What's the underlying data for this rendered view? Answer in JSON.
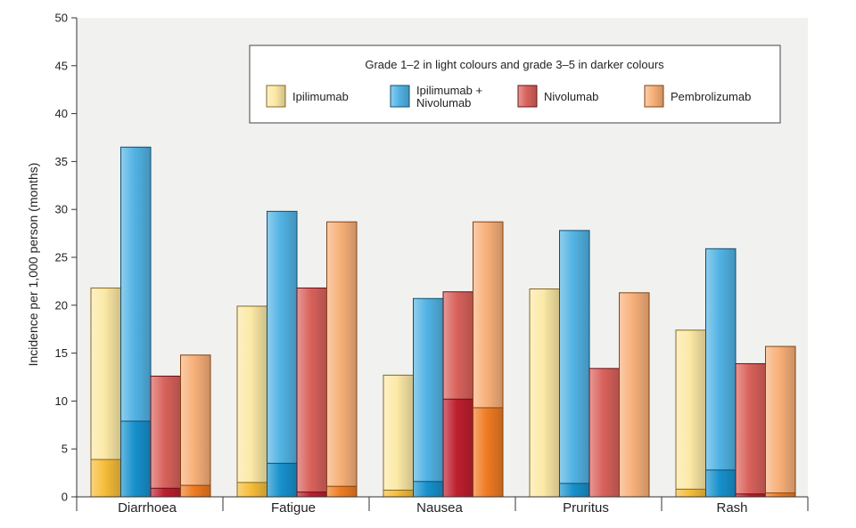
{
  "chart_data": {
    "type": "bar",
    "stacked_within_bar": true,
    "ylabel": "Incidence per 1,000 person (months)",
    "xlabel": "",
    "ylim": [
      0,
      50
    ],
    "yticks": [
      0,
      5,
      10,
      15,
      20,
      25,
      30,
      35,
      40,
      45,
      50
    ],
    "categories": [
      "Diarrhoea",
      "Fatigue",
      "Nausea",
      "Pruritus",
      "Rash"
    ],
    "legend": {
      "title": "Grade 1–2 in light colours and grade 3–5 in darker colours",
      "placement": "top-right"
    },
    "series": [
      {
        "name": "Ipilimumab",
        "legend_label_lines": [
          "Ipilimumab"
        ],
        "light_color": "#fce9a6",
        "dark_color": "#f6bd3a",
        "total": [
          21.8,
          19.9,
          12.7,
          21.7,
          17.4
        ],
        "grade_3_5": [
          3.9,
          1.5,
          0.7,
          0.0,
          0.8
        ]
      },
      {
        "name": "Ipilimumab + Nivolumab",
        "legend_label_lines": [
          "Ipilimumab +",
          "Nivolumab"
        ],
        "light_color": "#52b3e4",
        "dark_color": "#1791cd",
        "total": [
          36.5,
          29.8,
          20.7,
          27.8,
          25.9
        ],
        "grade_3_5": [
          7.9,
          3.5,
          1.6,
          1.4,
          2.8
        ]
      },
      {
        "name": "Nivolumab",
        "legend_label_lines": [
          "Nivolumab"
        ],
        "light_color": "#d9625c",
        "dark_color": "#be1f2e",
        "total": [
          12.6,
          21.8,
          21.4,
          13.4,
          13.9
        ],
        "grade_3_5": [
          0.9,
          0.5,
          10.2,
          0.0,
          0.3
        ]
      },
      {
        "name": "Pembrolizumab",
        "legend_label_lines": [
          "Pembrolizumab"
        ],
        "light_color": "#f8b079",
        "dark_color": "#ef7b22",
        "total": [
          14.8,
          28.7,
          28.7,
          21.3,
          15.7
        ],
        "grade_3_5": [
          1.2,
          1.1,
          9.3,
          0.0,
          0.4
        ]
      }
    ]
  }
}
